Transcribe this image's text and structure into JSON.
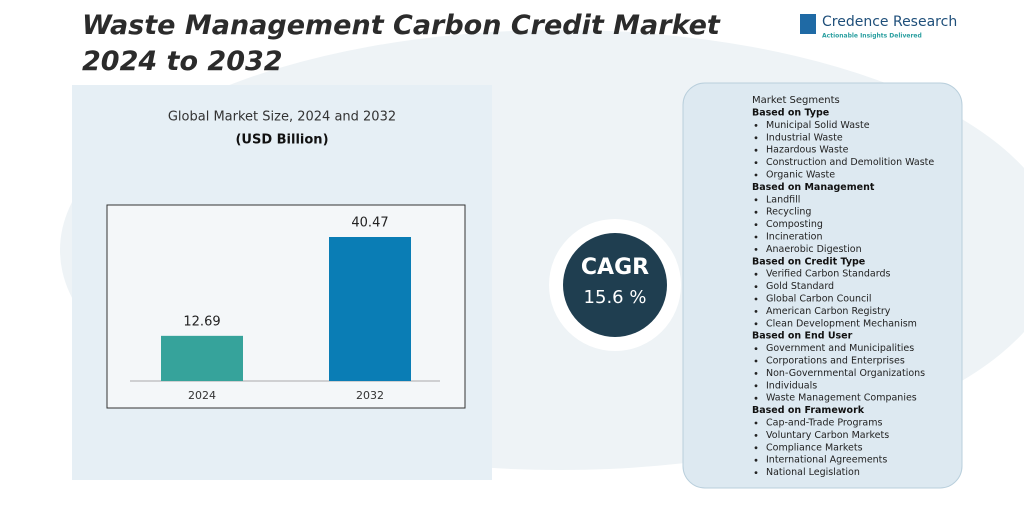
{
  "title": "Waste Management Carbon Credit Market 2024 to 2032",
  "logo": {
    "name": "Credence Research",
    "tagline": "Actionable Insights Delivered"
  },
  "chart_data": {
    "type": "bar",
    "title": "Global Market Size, 2024 and 2032",
    "subtitle": "(USD Billion)",
    "categories": [
      "2024",
      "2032"
    ],
    "values": [
      12.69,
      40.47
    ],
    "colors": [
      "#36a39b",
      "#0a7db5"
    ]
  },
  "cagr": {
    "label": "CAGR",
    "value": "15.6 %"
  },
  "segments": {
    "title": "Market Segments",
    "groups": [
      {
        "heading": "Based on Type",
        "items": [
          "Municipal Solid Waste",
          "Industrial Waste",
          "Hazardous Waste",
          "Construction and Demolition Waste",
          "Organic Waste"
        ]
      },
      {
        "heading": "Based on Management",
        "items": [
          "Landfill",
          "Recycling",
          "Composting",
          "Incineration",
          "Anaerobic Digestion"
        ]
      },
      {
        "heading": "Based on Credit Type",
        "items": [
          "Verified Carbon Standards",
          "Gold Standard",
          "Global Carbon Council",
          "American Carbon Registry",
          "Clean Development Mechanism"
        ]
      },
      {
        "heading": "Based on End User",
        "items": [
          "Government and Municipalities",
          "Corporations and Enterprises",
          "Non-Governmental Organizations",
          "Individuals",
          "Waste Management Companies"
        ]
      },
      {
        "heading": "Based on Framework",
        "items": [
          "Cap-and-Trade Programs",
          "Voluntary Carbon Markets",
          "Compliance Markets",
          "International Agreements",
          "National Legislation"
        ]
      }
    ]
  }
}
